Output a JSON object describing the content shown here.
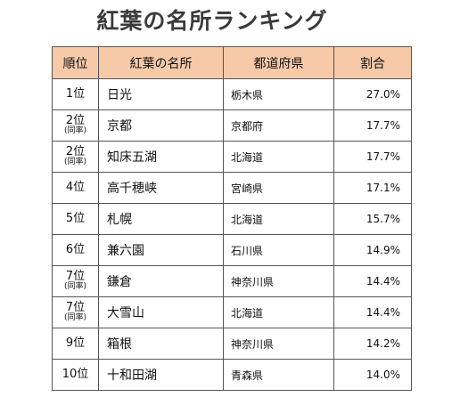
{
  "title": "紅葉の名所ランキング",
  "table": {
    "headers": {
      "rank": "順位",
      "name": "紅葉の名所",
      "prefecture": "都道府県",
      "ratio": "割合"
    },
    "rows": [
      {
        "rank": "1位",
        "note": "",
        "name": "日光",
        "prefecture": "栃木県",
        "ratio": "27.0%"
      },
      {
        "rank": "2位",
        "note": "(同率)",
        "name": "京都",
        "prefecture": "京都府",
        "ratio": "17.7%"
      },
      {
        "rank": "2位",
        "note": "(同率)",
        "name": "知床五湖",
        "prefecture": "北海道",
        "ratio": "17.7%"
      },
      {
        "rank": "4位",
        "note": "",
        "name": "高千穂峡",
        "prefecture": "宮崎県",
        "ratio": "17.1%"
      },
      {
        "rank": "5位",
        "note": "",
        "name": "札幌",
        "prefecture": "北海道",
        "ratio": "15.7%"
      },
      {
        "rank": "6位",
        "note": "",
        "name": "兼六園",
        "prefecture": "石川県",
        "ratio": "14.9%"
      },
      {
        "rank": "7位",
        "note": "(同率)",
        "name": "鎌倉",
        "prefecture": "神奈川県",
        "ratio": "14.4%"
      },
      {
        "rank": "7位",
        "note": "(同率)",
        "name": "大雪山",
        "prefecture": "北海道",
        "ratio": "14.4%"
      },
      {
        "rank": "9位",
        "note": "",
        "name": "箱根",
        "prefecture": "神奈川県",
        "ratio": "14.2%"
      },
      {
        "rank": "10位",
        "note": "",
        "name": "十和田湖",
        "prefecture": "青森県",
        "ratio": "14.0%"
      }
    ]
  },
  "colors": {
    "header_bg": "#f6c9a9",
    "border": "#555555",
    "title": "#3a3a3a"
  }
}
